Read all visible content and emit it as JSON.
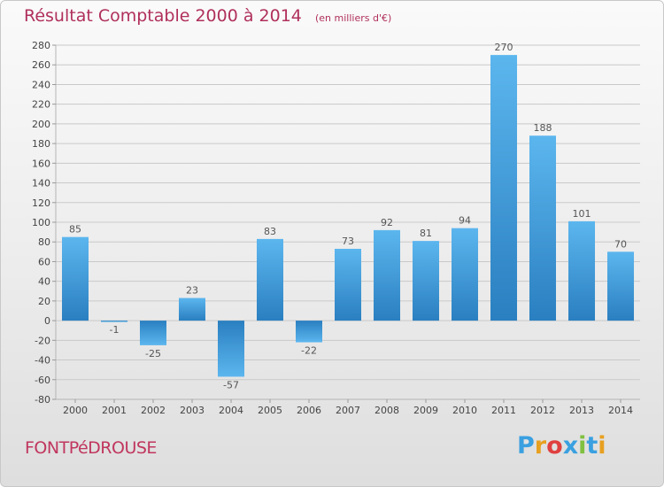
{
  "header": {
    "title": "Résultat Comptable 2000 à 2014",
    "unit": "(en milliers d'€)"
  },
  "footer": {
    "commune": "FONTPéDROUSE",
    "logo_letters": [
      {
        "ch": "P",
        "color": "#3aa0e0"
      },
      {
        "ch": "r",
        "color": "#e8a020"
      },
      {
        "ch": "o",
        "color": "#e04040"
      },
      {
        "ch": "x",
        "color": "#3aa0e0"
      },
      {
        "ch": "i",
        "color": "#80c040"
      },
      {
        "ch": "t",
        "color": "#3aa0e0"
      },
      {
        "ch": "i",
        "color": "#e8a020"
      }
    ]
  },
  "colors": {
    "bar_light": "#5ab4ee",
    "bar_dark": "#2a82c4",
    "grid": "#c9c9c9",
    "axis_text": "#444444",
    "title": "#b0305c"
  },
  "chart_data": {
    "type": "bar",
    "categories": [
      "2000",
      "2001",
      "2002",
      "2003",
      "2004",
      "2005",
      "2006",
      "2007",
      "2008",
      "2009",
      "2010",
      "2011",
      "2012",
      "2013",
      "2014"
    ],
    "values": [
      85,
      -1,
      -25,
      23,
      -57,
      83,
      -22,
      73,
      92,
      81,
      94,
      270,
      188,
      101,
      70
    ],
    "title": "Résultat Comptable 2000 à 2014",
    "ylabel": "",
    "xlabel": "",
    "ylim": [
      -80,
      280
    ],
    "yticks": [
      -80,
      -60,
      -40,
      -20,
      0,
      20,
      40,
      60,
      80,
      100,
      120,
      140,
      160,
      180,
      200,
      220,
      240,
      260,
      280
    ],
    "grid": true,
    "legend": "none"
  }
}
